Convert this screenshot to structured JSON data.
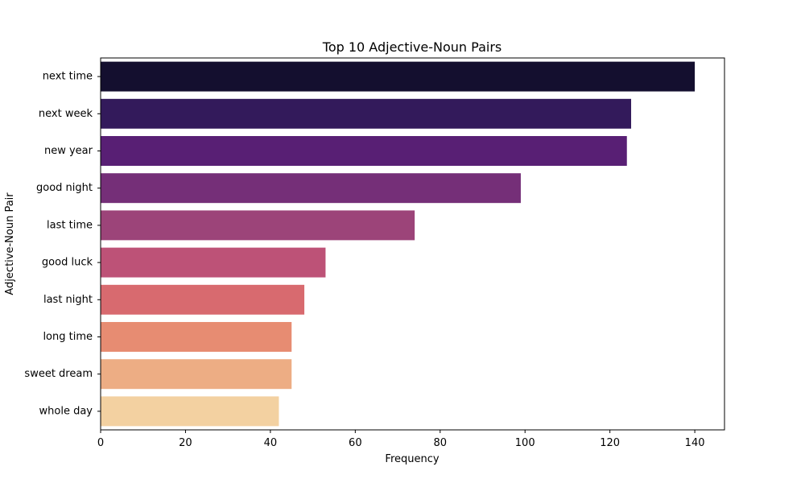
{
  "chart_data": {
    "type": "bar",
    "orientation": "horizontal",
    "title": "Top 10 Adjective-Noun Pairs",
    "xlabel": "Frequency",
    "ylabel": "Adjective-Noun Pair",
    "categories": [
      "next time",
      "next week",
      "new year",
      "good night",
      "last time",
      "good luck",
      "last night",
      "long time",
      "sweet dream",
      "whole day"
    ],
    "values": [
      140,
      125,
      124,
      99,
      74,
      53,
      48,
      45,
      45,
      42
    ],
    "colors": [
      "#140f2f",
      "#331a5b",
      "#581f74",
      "#752f78",
      "#9c4479",
      "#bd5277",
      "#d86a6f",
      "#e78c72",
      "#edad84",
      "#f3d1a1"
    ],
    "xlim": [
      0,
      147
    ],
    "xticks": [
      0,
      20,
      40,
      60,
      80,
      100,
      120,
      140
    ],
    "grid": false,
    "legend": "none"
  }
}
